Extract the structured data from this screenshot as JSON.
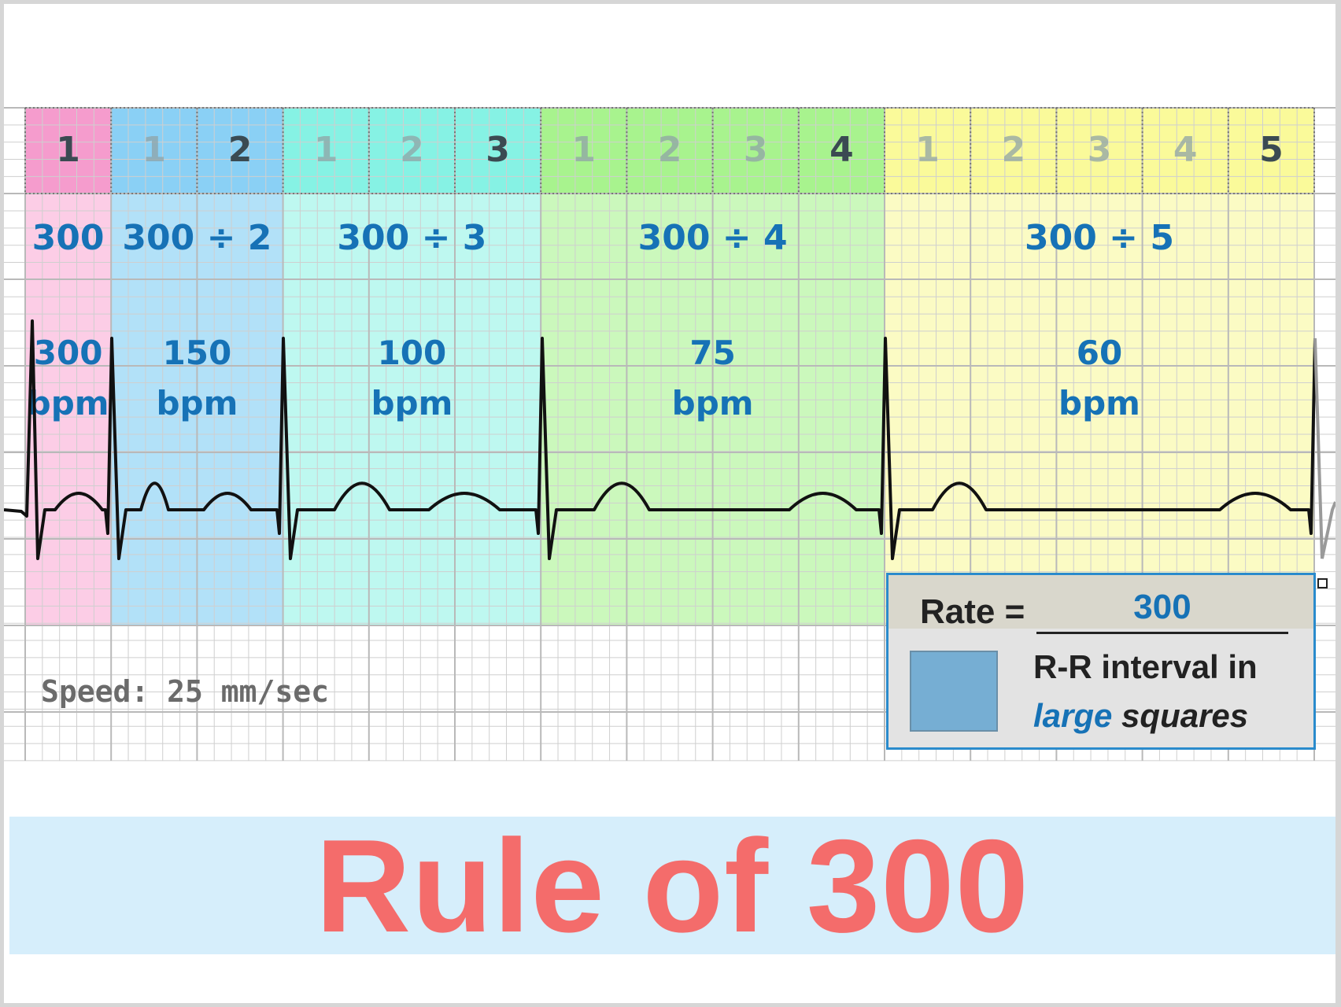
{
  "title": "Rule of 300",
  "speed_label": "Speed: 25 mm/sec",
  "square_counts": [
    [
      "1"
    ],
    [
      "1",
      "2"
    ],
    [
      "1",
      "2",
      "3"
    ],
    [
      "1",
      "2",
      "3",
      "4"
    ],
    [
      "1",
      "2",
      "3",
      "4",
      "5"
    ]
  ],
  "zones": [
    {
      "formula": "300",
      "rate": "300",
      "unit": "bpm"
    },
    {
      "formula": "300 ÷ 2",
      "rate": "150",
      "unit": "bpm"
    },
    {
      "formula": "300 ÷ 3",
      "rate": "100",
      "unit": "bpm"
    },
    {
      "formula": "300 ÷ 4",
      "rate": "75",
      "unit": "bpm"
    },
    {
      "formula": "300 ÷ 5",
      "rate": "60",
      "unit": "bpm"
    }
  ],
  "formula_box": {
    "rate_label": "Rate =",
    "numerator": "300",
    "denominator_line1": "R-R interval in",
    "denominator_em": "large",
    "denominator_rest": " squares"
  },
  "colors": {
    "zone_1_header": "#f59ccd",
    "zone_1_body": "#fccde6",
    "zone_2_header": "#8ad0f5",
    "zone_2_body": "#b2e1f8",
    "zone_3_header": "#86f2e4",
    "zone_3_body": "#bef8f0",
    "zone_4_header": "#a8f38e",
    "zone_4_body": "#cbf8bc",
    "zone_5_header": "#fafa9a",
    "zone_5_body": "#fbfbc4",
    "label_blue": "#1672b6",
    "title_red": "#f46c6b",
    "banner_bg": "#d6eefb",
    "box_border": "#2a8bcc",
    "square_fill": "#76aed3",
    "ecg_trace": "#111111",
    "grid_line": "#cfcfcf"
  }
}
